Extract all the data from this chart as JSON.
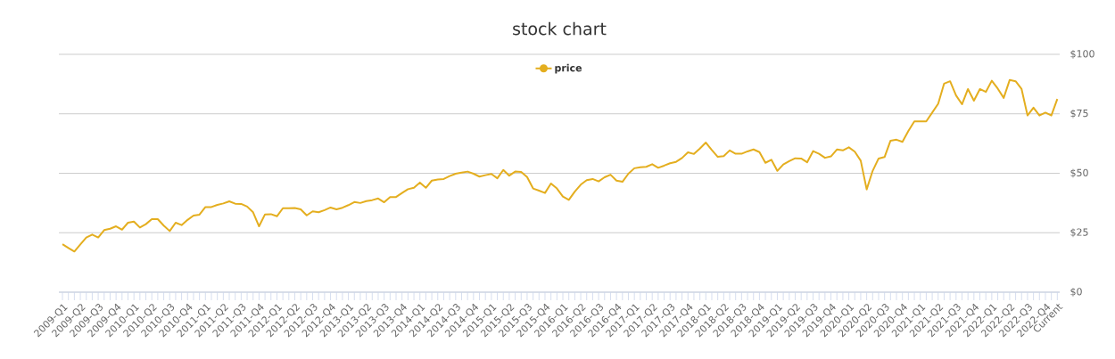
{
  "chart_data": {
    "type": "line",
    "title": "stock chart",
    "categories": [
      "2009-Q1",
      null,
      null,
      "2009-Q2",
      null,
      null,
      "2009-Q3",
      null,
      null,
      "2009-Q4",
      null,
      null,
      "2010-Q1",
      null,
      null,
      "2010-Q2",
      null,
      null,
      "2010-Q3",
      null,
      null,
      "2010-Q4",
      null,
      null,
      "2011-Q1",
      null,
      null,
      "2011-Q2",
      null,
      null,
      "2011-Q3",
      null,
      null,
      "2011-Q4",
      null,
      null,
      "2012-Q1",
      null,
      null,
      "2012-Q2",
      null,
      null,
      "2012-Q3",
      null,
      null,
      "2012-Q4",
      null,
      null,
      "2013-Q1",
      null,
      null,
      "2013-Q2",
      null,
      null,
      "2013-Q3",
      null,
      null,
      "2013-Q4",
      null,
      null,
      "2014-Q1",
      null,
      null,
      "2014-Q2",
      null,
      null,
      "2014-Q3",
      null,
      null,
      "2014-Q4",
      null,
      null,
      "2015-Q1",
      null,
      null,
      "2015-Q2",
      null,
      null,
      "2015-Q3",
      null,
      null,
      "2015-Q4",
      null,
      null,
      "2016-Q1",
      null,
      null,
      "2016-Q2",
      null,
      null,
      "2016-Q3",
      null,
      null,
      "2016-Q4",
      null,
      null,
      "2017-Q1",
      null,
      null,
      "2017-Q2",
      null,
      null,
      "2017-Q3",
      null,
      null,
      "2017-Q4",
      null,
      null,
      "2018-Q1",
      null,
      null,
      "2018-Q2",
      null,
      null,
      "2018-Q3",
      null,
      null,
      "2018-Q4",
      null,
      null,
      "2019-Q1",
      null,
      null,
      "2019-Q2",
      null,
      null,
      "2019-Q3",
      null,
      null,
      "2019-Q4",
      null,
      null,
      "2020-Q1",
      null,
      null,
      "2020-Q2",
      null,
      null,
      "2020-Q3",
      null,
      null,
      "2020-Q4",
      null,
      null,
      "2021-Q1",
      null,
      null,
      "2021-Q2",
      null,
      null,
      "2021-Q3",
      null,
      null,
      "2021-Q4",
      null,
      null,
      "2022-Q1",
      null,
      null,
      "2022-Q2",
      null,
      null,
      "2022-Q3",
      null,
      null,
      "2022-Q4",
      null,
      "Current"
    ],
    "series": [
      {
        "name": "price",
        "color": "#e4ae1f",
        "values": [
          20.2,
          18.6,
          17.1,
          20.1,
          23,
          24.2,
          23,
          26.1,
          26.7,
          27.7,
          26.3,
          29.2,
          29.7,
          27.2,
          28.6,
          30.7,
          30.7,
          28,
          25.7,
          29.2,
          28.2,
          30.4,
          32.2,
          32.6,
          35.8,
          35.8,
          36.7,
          37.3,
          38.2,
          37.2,
          37.1,
          36,
          33.6,
          27.7,
          32.7,
          32.8,
          31.9,
          35.3,
          35.3,
          35.4,
          34.8,
          32.3,
          34,
          33.6,
          34.5,
          35.6,
          34.8,
          35.5,
          36.6,
          37.9,
          37.5,
          38.3,
          38.7,
          39.4,
          37.8,
          40,
          40,
          41.7,
          43.3,
          43.9,
          46.1,
          43.9,
          46.9,
          47.4,
          47.6,
          48.8,
          49.8,
          50.3,
          50.7,
          49.8,
          48.6,
          49.2,
          49.7,
          47.9,
          51.4,
          49,
          50.7,
          50.6,
          48.4,
          43.6,
          42.7,
          41.7,
          45.7,
          43.6,
          40.2,
          38.8,
          42.3,
          45.2,
          47.1,
          47.6,
          46.6,
          48.3,
          49.4,
          46.9,
          46.4,
          49.8,
          52.1,
          52.5,
          52.7,
          53.8,
          52.3,
          53.2,
          54.2,
          54.8,
          56.4,
          58.8,
          58.1,
          60.4,
          62.9,
          59.8,
          56.9,
          57.2,
          59.6,
          58.2,
          58.2,
          59.2,
          60,
          58.9,
          54.4,
          55.7,
          51,
          53.7,
          55.1,
          56.3,
          56.2,
          54.6,
          59.3,
          58.2,
          56.5,
          57.1,
          60,
          59.6,
          60.9,
          59.1,
          55.3,
          43.2,
          51,
          56.2,
          56.8,
          63.7,
          64.1,
          63.2,
          67.8,
          71.8,
          71.8,
          71.8,
          75.5,
          79.2,
          87.7,
          88.7,
          82.7,
          79,
          85.4,
          80.5,
          85.4,
          84.2,
          88.9,
          85.6,
          81.7,
          89.2,
          88.7,
          85.4,
          74.3,
          77.6,
          74.3,
          75.5,
          74.3,
          81.2
        ]
      }
    ],
    "ylim": [
      0,
      100
    ],
    "yticks": [
      {
        "value": 0,
        "label": "$0"
      },
      {
        "value": 25,
        "label": "$25"
      },
      {
        "value": 50,
        "label": "$50"
      },
      {
        "value": 75,
        "label": "$75"
      },
      {
        "value": 100,
        "label": "$100"
      }
    ],
    "grid": "y",
    "legend": "top"
  }
}
